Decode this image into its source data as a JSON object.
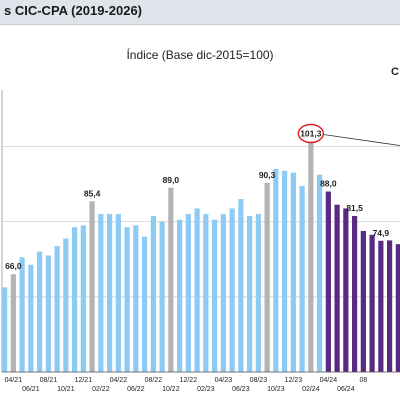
{
  "header": {
    "title": "s CIC-CPA (2019-2026)"
  },
  "edge_text": "C",
  "colors": {
    "light": "#8ecbf4",
    "gray": "#b3b3b3",
    "dark": "#5a2a82",
    "grid": "#d0d0d0",
    "circle": "#e02020",
    "leader": "#333333"
  },
  "chart_data": {
    "type": "bar",
    "title": "Índice (Base dic-2015=100)",
    "ylim": [
      40,
      115
    ],
    "grid": true,
    "values": [
      62.5,
      66.0,
      70.5,
      68.5,
      72.0,
      71.0,
      73.5,
      75.5,
      78.5,
      79.0,
      85.4,
      82.0,
      82.0,
      82.0,
      78.5,
      79.0,
      76.0,
      81.5,
      80.0,
      89.0,
      80.5,
      82.0,
      83.5,
      82.0,
      80.5,
      82.0,
      83.5,
      86.0,
      81.5,
      82.0,
      90.3,
      94.0,
      93.5,
      93.0,
      89.5,
      101.3,
      92.5,
      88.0,
      84.5,
      83.5,
      81.5,
      77.5,
      76.5,
      74.9,
      75.0,
      74.0
    ],
    "kinds": [
      "light",
      "gray",
      "light",
      "light",
      "light",
      "light",
      "light",
      "light",
      "light",
      "light",
      "gray",
      "light",
      "light",
      "light",
      "light",
      "light",
      "light",
      "light",
      "light",
      "gray",
      "light",
      "light",
      "light",
      "light",
      "light",
      "light",
      "light",
      "light",
      "light",
      "light",
      "gray",
      "light",
      "light",
      "light",
      "light",
      "gray",
      "light",
      "dark",
      "dark",
      "dark",
      "dark",
      "dark",
      "dark",
      "dark",
      "dark",
      "dark"
    ],
    "data_labels": [
      {
        "index": 1,
        "text": "66,0"
      },
      {
        "index": 10,
        "text": "85,4"
      },
      {
        "index": 19,
        "text": "89,0"
      },
      {
        "index": 30,
        "text": "90,3"
      },
      {
        "index": 35,
        "text": "101,3",
        "highlight": true
      },
      {
        "index": 37,
        "text": "88,0"
      },
      {
        "index": 40,
        "text": "81,5"
      },
      {
        "index": 43,
        "text": "74,9"
      }
    ],
    "tick_labels": [
      {
        "index": 1,
        "text": "04/21",
        "row": 1
      },
      {
        "index": 3,
        "text": "06/21",
        "row": 2
      },
      {
        "index": 5,
        "text": "08/21",
        "row": 1
      },
      {
        "index": 7,
        "text": "10/21",
        "row": 2
      },
      {
        "index": 9,
        "text": "12/21",
        "row": 1
      },
      {
        "index": 11,
        "text": "02/22",
        "row": 2
      },
      {
        "index": 13,
        "text": "04/22",
        "row": 1
      },
      {
        "index": 15,
        "text": "06/22",
        "row": 2
      },
      {
        "index": 17,
        "text": "08/22",
        "row": 1
      },
      {
        "index": 19,
        "text": "10/22",
        "row": 2
      },
      {
        "index": 21,
        "text": "12/22",
        "row": 1
      },
      {
        "index": 23,
        "text": "02/23",
        "row": 2
      },
      {
        "index": 25,
        "text": "04/23",
        "row": 1
      },
      {
        "index": 27,
        "text": "06/23",
        "row": 2
      },
      {
        "index": 29,
        "text": "08/23",
        "row": 1
      },
      {
        "index": 31,
        "text": "10/23",
        "row": 2
      },
      {
        "index": 33,
        "text": "12/23",
        "row": 1
      },
      {
        "index": 35,
        "text": "02/24",
        "row": 2
      },
      {
        "index": 37,
        "text": "04/24",
        "row": 1
      },
      {
        "index": 39,
        "text": "06/24",
        "row": 2
      },
      {
        "index": 41,
        "text": "08",
        "row": 1
      }
    ]
  }
}
